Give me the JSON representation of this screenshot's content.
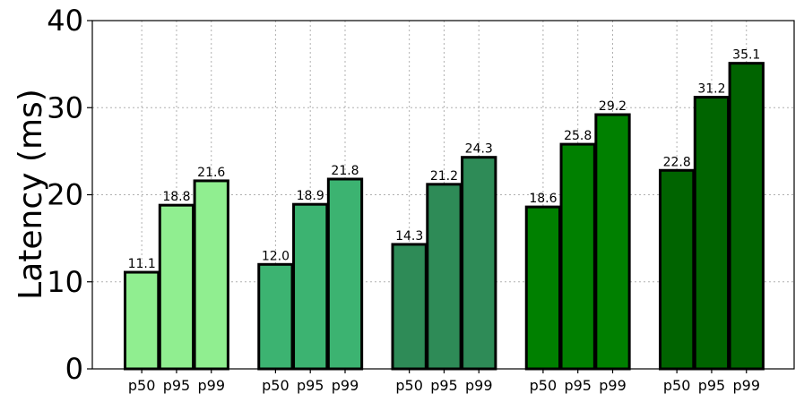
{
  "chart_data": {
    "type": "bar",
    "title": "",
    "xlabel": "",
    "ylabel": "Latency (ms)",
    "ylim": [
      0,
      40
    ],
    "yticks": [
      0,
      10,
      20,
      30,
      40
    ],
    "grid": true,
    "legend": "none",
    "groups": [
      {
        "color": "#90ee90",
        "bars": [
          {
            "label": "p50",
            "value": 11.1
          },
          {
            "label": "p95",
            "value": 18.8
          },
          {
            "label": "p99",
            "value": 21.6
          }
        ]
      },
      {
        "color": "#3cb371",
        "bars": [
          {
            "label": "p50",
            "value": 12.0
          },
          {
            "label": "p95",
            "value": 18.9
          },
          {
            "label": "p99",
            "value": 21.8
          }
        ]
      },
      {
        "color": "#2e8b57",
        "bars": [
          {
            "label": "p50",
            "value": 14.3
          },
          {
            "label": "p95",
            "value": 21.2
          },
          {
            "label": "p99",
            "value": 24.3
          }
        ]
      },
      {
        "color": "#008000",
        "bars": [
          {
            "label": "p50",
            "value": 18.6
          },
          {
            "label": "p95",
            "value": 25.8
          },
          {
            "label": "p99",
            "value": 29.2
          }
        ]
      },
      {
        "color": "#006400",
        "bars": [
          {
            "label": "p50",
            "value": 22.8
          },
          {
            "label": "p95",
            "value": 31.2
          },
          {
            "label": "p99",
            "value": 35.1
          }
        ]
      }
    ]
  }
}
